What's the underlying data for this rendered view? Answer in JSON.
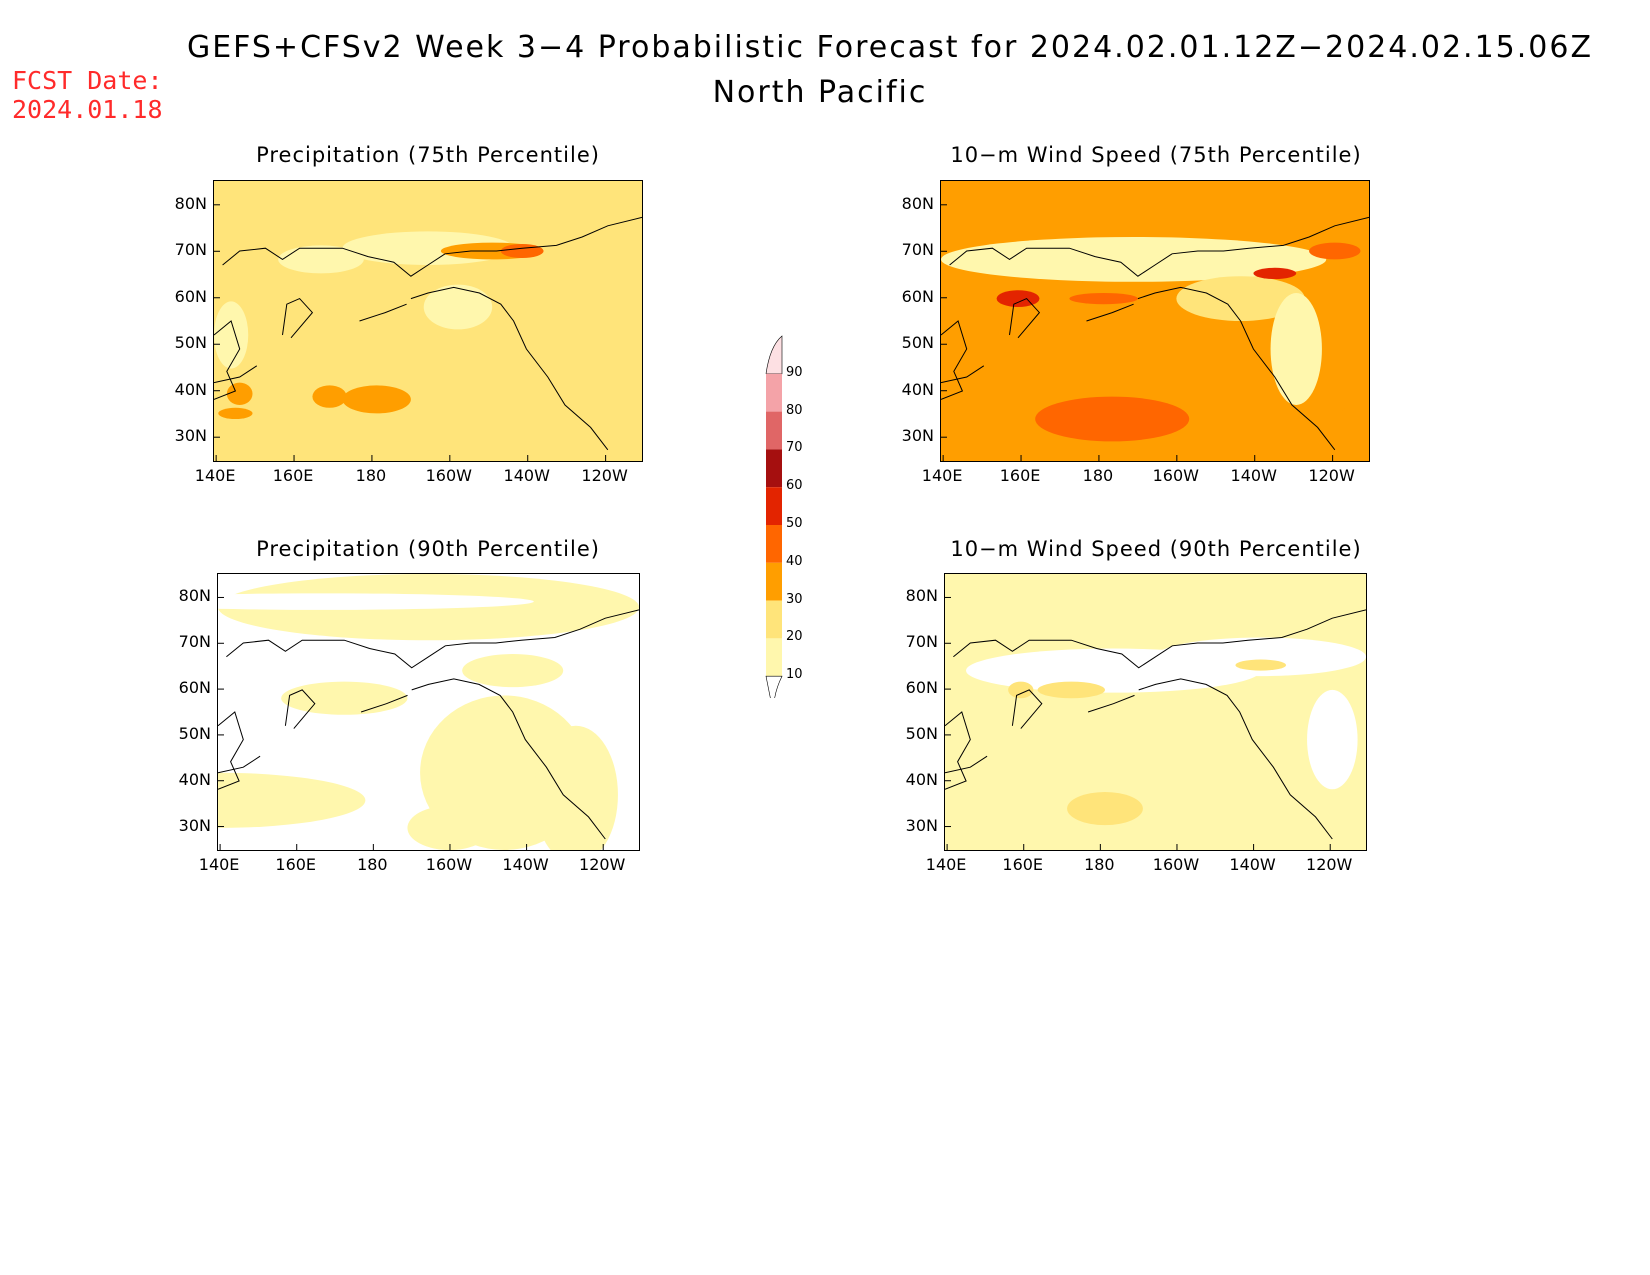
{
  "header": {
    "fcst_label": "FCST Date:",
    "fcst_date": "2024.01.18",
    "title": "GEFS+CFSv2 Week 3−4 Probabilistic Forecast for 2024.02.01.12Z−2024.02.15.06Z",
    "subtitle": "North Pacific"
  },
  "panels": [
    {
      "id": "precip75",
      "title": "Precipitation (75th Percentile)",
      "base_category": "20-30"
    },
    {
      "id": "wind75",
      "title": "10−m Wind Speed (75th Percentile)",
      "base_category": "30-40"
    },
    {
      "id": "precip90",
      "title": "Precipitation (90th Percentile)",
      "base_category": "<10"
    },
    {
      "id": "wind90",
      "title": "10−m Wind Speed (90th Percentile)",
      "base_category": "10-20"
    }
  ],
  "axes": {
    "lat_labels": [
      "80N",
      "70N",
      "60N",
      "50N",
      "40N",
      "30N"
    ],
    "lon_labels": [
      "140E",
      "160E",
      "180",
      "160W",
      "140W",
      "120W"
    ]
  },
  "colorbar": {
    "labels": [
      "90",
      "80",
      "70",
      "60",
      "50",
      "40",
      "30",
      "20",
      "10"
    ],
    "colors": [
      "#fde0e3",
      "#f4a3a8",
      "#e06666",
      "#a50f0f",
      "#e32400",
      "#ff6600",
      "#ff9e00",
      "#ffe47a",
      "#fff7ad"
    ]
  },
  "colors": {
    "fcst_date": "#ff2a2a",
    "white": "#ffffff",
    "pale_yellow": "#fff7ad",
    "light_yellow": "#ffe47a",
    "orange": "#ff9e00",
    "dark_orange": "#ff6600",
    "red": "#e32400"
  }
}
